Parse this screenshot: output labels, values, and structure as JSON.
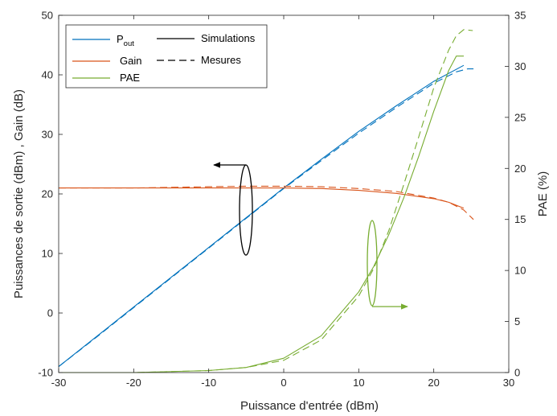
{
  "chart_data": {
    "type": "line",
    "xlabel": "Puissance d'entrée (dBm)",
    "ylabel_left": "Puissances de sortie (dBm) , Gain (dB)",
    "ylabel_right": "PAE (%)",
    "xlim": [
      -30,
      30
    ],
    "ylim_left": [
      -10,
      50
    ],
    "ylim_right": [
      0,
      35
    ],
    "x_ticks": [
      "-30",
      "-20",
      "-10",
      "0",
      "10",
      "20",
      "30"
    ],
    "y_left_ticks": [
      "-10",
      "0",
      "10",
      "20",
      "30",
      "40",
      "50"
    ],
    "y_right_ticks": [
      "0",
      "5",
      "10",
      "15",
      "20",
      "25",
      "30",
      "35"
    ],
    "grid": false,
    "legend": {
      "placement": "top-left",
      "entries": [
        {
          "main": "P",
          "sub": "out"
        },
        {
          "main": "Gain"
        },
        {
          "main": "PAE"
        },
        {
          "main": "Simulations"
        },
        {
          "main": "Mesures"
        }
      ]
    },
    "colors": {
      "pout": "#0072BD",
      "gain": "#D95319",
      "pae": "#77AC30",
      "axis": "#262626"
    },
    "series": [
      {
        "name": "Pout",
        "style": "Simulations",
        "axis": "left",
        "x": [
          -30,
          -25,
          -20,
          -15,
          -10,
          -5,
          0,
          5,
          10,
          15,
          20,
          24
        ],
        "y": [
          -9,
          -4,
          1,
          6,
          11,
          16,
          21,
          25.8,
          30.5,
          34.8,
          38.9,
          41.6
        ]
      },
      {
        "name": "Pout",
        "style": "Mesures",
        "axis": "left",
        "x": [
          -30,
          -25,
          -20,
          -15,
          -10,
          -5,
          0,
          5,
          10,
          15,
          20,
          23,
          24.5,
          25.3
        ],
        "y": [
          -9,
          -4.1,
          0.9,
          5.9,
          10.9,
          15.9,
          20.9,
          25.6,
          30.2,
          34.5,
          38.6,
          40.5,
          41,
          41
        ]
      },
      {
        "name": "Gain",
        "style": "Simulations",
        "axis": "left",
        "x": [
          -30,
          -20,
          -10,
          -5,
          0,
          5,
          10,
          15,
          20,
          22,
          24
        ],
        "y": [
          21,
          21,
          21,
          21,
          21,
          20.9,
          20.6,
          20.1,
          19.2,
          18.6,
          17.6
        ]
      },
      {
        "name": "Gain",
        "style": "Mesures",
        "axis": "left",
        "x": [
          -30,
          -20,
          -10,
          -5,
          0,
          5,
          10,
          15,
          20,
          22,
          24,
          25.3
        ],
        "y": [
          21,
          21,
          21.2,
          21.3,
          21.3,
          21.2,
          20.9,
          20.4,
          19.3,
          18.6,
          17.3,
          15.7
        ]
      },
      {
        "name": "PAE",
        "style": "Simulations",
        "axis": "right",
        "x": [
          -30,
          -20,
          -10,
          -5,
          0,
          5,
          10,
          12,
          14,
          16,
          18,
          20,
          22,
          23,
          24
        ],
        "y": [
          0,
          0,
          0.2,
          0.5,
          1.4,
          3.6,
          7.9,
          10.4,
          13.5,
          17.1,
          21.2,
          25.6,
          29.6,
          31,
          31
        ]
      },
      {
        "name": "PAE",
        "style": "Mesures",
        "axis": "right",
        "x": [
          -30,
          -20,
          -10,
          -5,
          0,
          5,
          10,
          12,
          14,
          16,
          18,
          20,
          22,
          23,
          24,
          25.2
        ],
        "y": [
          0,
          0,
          0.2,
          0.5,
          1.2,
          3.2,
          7.5,
          10.2,
          13.9,
          18.4,
          23.1,
          27.9,
          31.6,
          33,
          33.6,
          33.5
        ]
      }
    ]
  }
}
